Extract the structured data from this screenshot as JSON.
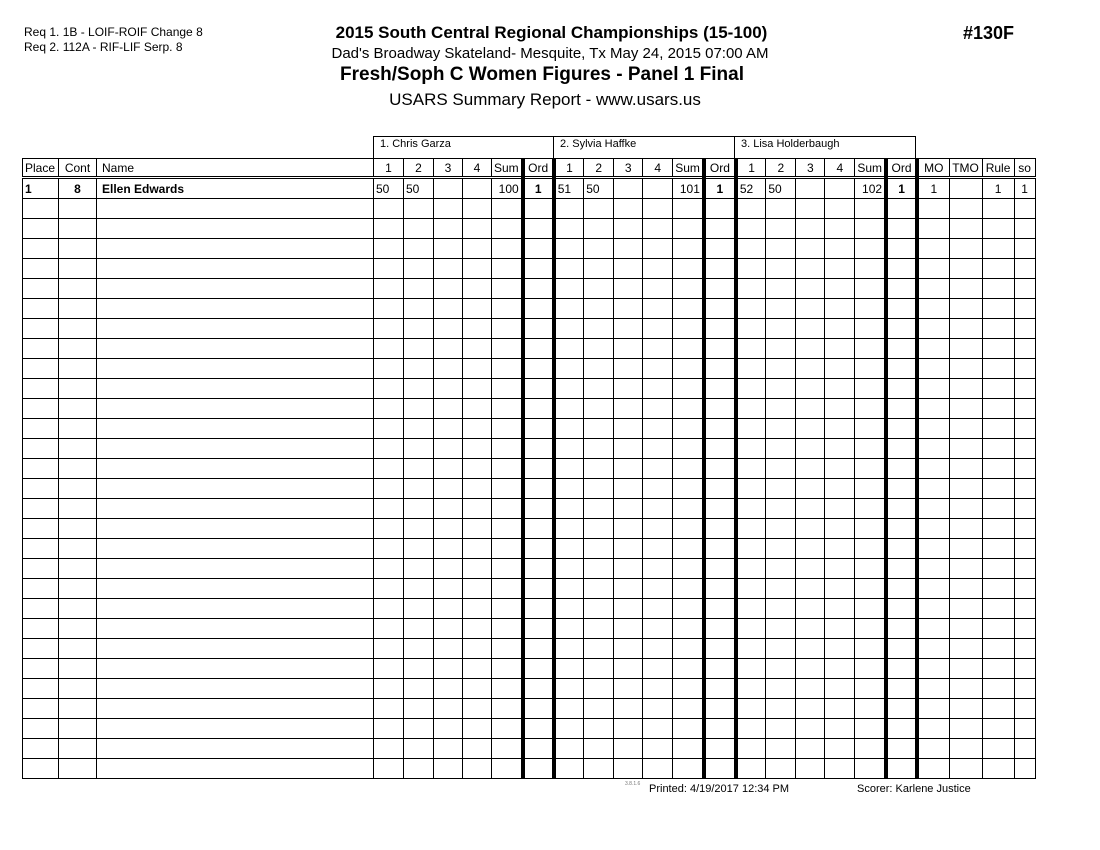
{
  "requirements": [
    "Req  1.  1B - LOIF-ROIF Change 8",
    "Req  2.  112A - RIF-LIF Serp. 8"
  ],
  "header": {
    "title": "2015 South Central Regional Championships (15-100)",
    "venue": "Dad's Broadway Skateland- Mesquite, Tx  May 24, 2015  07:00 AM",
    "event": "Fresh/Soph C Women Figures - Panel 1 Final",
    "report": "USARS Summary Report - www.usars.us",
    "event_number": "#130F"
  },
  "judges": [
    "1.  Chris Garza",
    "2.  Sylvia Haffke",
    "3.  Lisa Holderbaugh"
  ],
  "columns": {
    "place": "Place",
    "cont": "Cont",
    "name": "Name",
    "judge_cols": [
      "1",
      "2",
      "3",
      "4",
      "Sum",
      "Ord"
    ],
    "extra": [
      "MO",
      "TMO",
      "Rule",
      "so"
    ]
  },
  "rows": [
    {
      "place": "1",
      "cont": "8",
      "name": "Ellen Edwards",
      "judges": [
        [
          "50",
          "50",
          "",
          "",
          "100",
          "1"
        ],
        [
          "51",
          "50",
          "",
          "",
          "101",
          "1"
        ],
        [
          "52",
          "50",
          "",
          "",
          "102",
          "1"
        ]
      ],
      "mo": "1",
      "tmo": "",
      "rule": "1",
      "so": "1"
    }
  ],
  "footer": {
    "version": "3.8.1.6",
    "printed": "Printed:  4/19/2017  12:34 PM",
    "scorer": "Scorer:   Karlene Justice"
  }
}
